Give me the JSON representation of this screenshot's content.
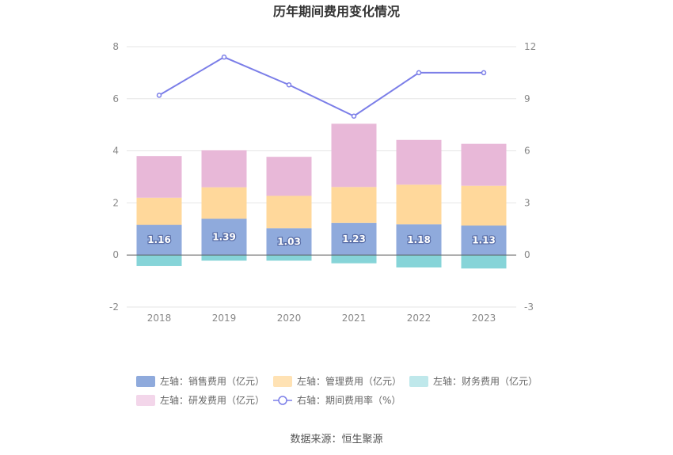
{
  "chart_data": {
    "type": "bar",
    "title": "历年期间费用变化情况",
    "categories": [
      "2018",
      "2019",
      "2020",
      "2021",
      "2022",
      "2023"
    ],
    "series": [
      {
        "name": "左轴：销售费用（亿元）",
        "axis": "left",
        "color": "#8faadc",
        "values": [
          1.16,
          1.39,
          1.03,
          1.23,
          1.18,
          1.13
        ]
      },
      {
        "name": "左轴：管理费用（亿元）",
        "axis": "left",
        "color": "#ffd89b",
        "values": [
          1.04,
          1.21,
          1.24,
          1.38,
          1.52,
          1.53
        ]
      },
      {
        "name": "左轴：财务费用（亿元）",
        "axis": "left",
        "color": "#86d4d8",
        "values": [
          -0.42,
          -0.22,
          -0.22,
          -0.32,
          -0.48,
          -0.52
        ]
      },
      {
        "name": "左轴：研发费用（亿元）",
        "axis": "left",
        "color": "#e8b8d8",
        "values": [
          1.6,
          1.42,
          1.5,
          2.43,
          1.72,
          1.61
        ]
      },
      {
        "name": "右轴：期间费用率（%）",
        "axis": "right",
        "type": "line",
        "color": "#7b7ee8",
        "values": [
          9.2,
          11.4,
          9.8,
          8.0,
          10.5,
          10.5
        ]
      }
    ],
    "bar_labels": [
      "1.16",
      "1.39",
      "1.03",
      "1.23",
      "1.18",
      "1.13"
    ],
    "left_axis": {
      "min": -2,
      "max": 8,
      "ticks": [
        "-2",
        "0",
        "2",
        "4",
        "6",
        "8"
      ]
    },
    "right_axis": {
      "min": -3,
      "max": 12,
      "ticks": [
        "-3",
        "0",
        "3",
        "6",
        "9",
        "12"
      ]
    },
    "legend_position": "bottom"
  },
  "source_text": "数据来源：恒生聚源"
}
